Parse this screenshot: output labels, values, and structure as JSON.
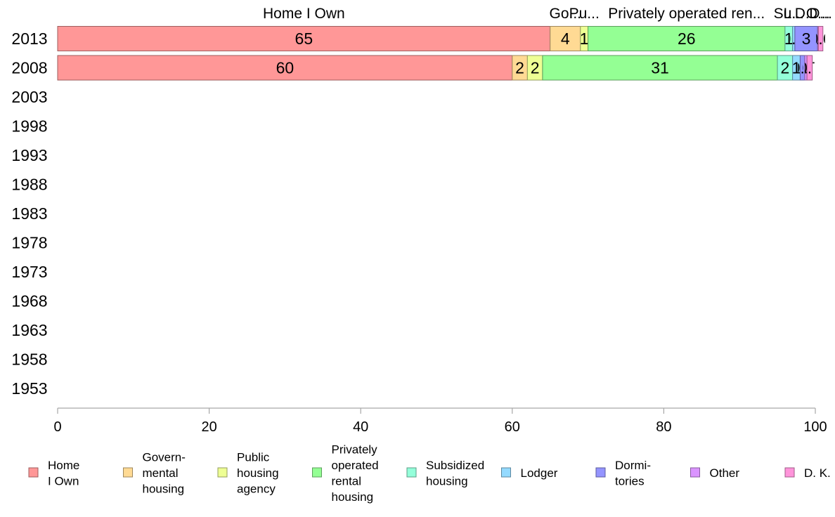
{
  "chart_data": {
    "type": "bar",
    "orientation": "horizontal",
    "stacked": true,
    "categories": [
      "2013",
      "2008",
      "2003",
      "1998",
      "1993",
      "1988",
      "1983",
      "1978",
      "1973",
      "1968",
      "1963",
      "1958",
      "1953"
    ],
    "series": [
      {
        "key": "home",
        "name": "Home I Own",
        "legend": [
          "Home",
          "I Own"
        ],
        "color": "#ff9797",
        "values": [
          65,
          60,
          null,
          null,
          null,
          null,
          null,
          null,
          null,
          null,
          null,
          null,
          null
        ]
      },
      {
        "key": "gov",
        "name": "Governmental housing",
        "legend": [
          "Govern-",
          "mental",
          " housing"
        ],
        "color": "#ffda94",
        "values": [
          4,
          2,
          null,
          null,
          null,
          null,
          null,
          null,
          null,
          null,
          null,
          null,
          null
        ]
      },
      {
        "key": "pub",
        "name": "Public housing agency",
        "legend": [
          "Public",
          "housing",
          "agency"
        ],
        "color": "#eeff94",
        "values": [
          1,
          2,
          null,
          null,
          null,
          null,
          null,
          null,
          null,
          null,
          null,
          null,
          null
        ]
      },
      {
        "key": "priv",
        "name": "Privately operated rental housing",
        "legend": [
          "Privately",
          "operated",
          "rental",
          "housing"
        ],
        "color": "#94ff94",
        "values": [
          26,
          31,
          null,
          null,
          null,
          null,
          null,
          null,
          null,
          null,
          null,
          null,
          null
        ]
      },
      {
        "key": "sub",
        "name": "Subsidized housing",
        "legend": [
          "Subsidized",
          " housing"
        ],
        "color": "#94ffda",
        "values": [
          1,
          2,
          null,
          null,
          null,
          null,
          null,
          null,
          null,
          null,
          null,
          null,
          null
        ]
      },
      {
        "key": "lod",
        "name": "Lodger",
        "legend": [
          "Lodger"
        ],
        "color": "#94daff",
        "values": [
          0.3,
          1,
          null,
          null,
          null,
          null,
          null,
          null,
          null,
          null,
          null,
          null,
          null
        ]
      },
      {
        "key": "dor",
        "name": "Dormitories",
        "legend": [
          "Dormi-",
          "tories"
        ],
        "color": "#9494ff",
        "values": [
          3,
          0.6,
          null,
          null,
          null,
          null,
          null,
          null,
          null,
          null,
          null,
          null,
          null
        ]
      },
      {
        "key": "oth",
        "name": "Other",
        "legend": [
          "Other"
        ],
        "color": "#da94ff",
        "values": [
          0.1,
          0.3,
          null,
          null,
          null,
          null,
          null,
          null,
          null,
          null,
          null,
          null,
          null
        ]
      },
      {
        "key": "dk",
        "name": "D. K.",
        "legend": [
          "D. K."
        ],
        "color": "#ff94da",
        "values": [
          0.6,
          0.7,
          null,
          null,
          null,
          null,
          null,
          null,
          null,
          null,
          null,
          null,
          null
        ]
      }
    ],
    "header_labels": [
      "Home I Own",
      "Go...",
      "Pu...",
      "Privately operated ren...",
      "Su...",
      "L...",
      "D...",
      "O...",
      "D..."
    ],
    "xlim": [
      0,
      100
    ],
    "xticks": [
      0,
      20,
      40,
      60,
      80,
      100
    ],
    "grid": false,
    "legend_position": "bottom"
  }
}
